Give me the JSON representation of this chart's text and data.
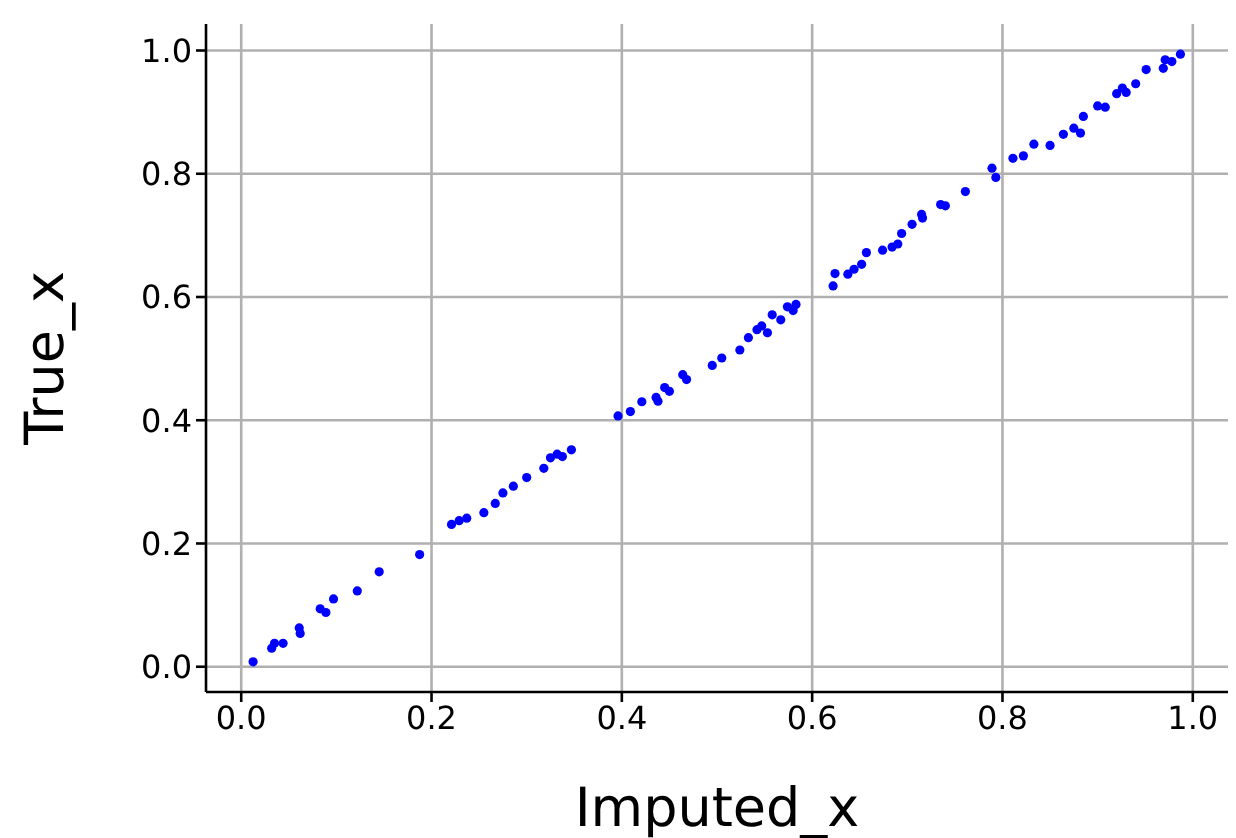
{
  "chart_data": {
    "type": "scatter",
    "xlabel": "Imputed_x",
    "ylabel": "True_x",
    "marker": "circle",
    "grid": true,
    "xlim": [
      -0.037,
      1.037
    ],
    "ylim": [
      -0.041,
      1.043
    ],
    "xticks": [
      {
        "value": 0,
        "label": "0.0"
      },
      {
        "value": 0.2,
        "label": "0.2"
      },
      {
        "value": 0.4,
        "label": "0.4"
      },
      {
        "value": 0.6,
        "label": "0.6"
      },
      {
        "value": 0.8,
        "label": "0.8"
      },
      {
        "value": 1,
        "label": "1.0"
      }
    ],
    "yticks": [
      {
        "value": 0,
        "label": "0.0"
      },
      {
        "value": 0.2,
        "label": "0.2"
      },
      {
        "value": 0.4,
        "label": "0.4"
      },
      {
        "value": 0.6,
        "label": "0.6"
      },
      {
        "value": 0.8,
        "label": "0.8"
      },
      {
        "value": 1,
        "label": "1.0"
      }
    ],
    "series": [
      {
        "color": "#0000ff",
        "x": [
          0.0125,
          0.032,
          0.035,
          0.044,
          0.061,
          0.062,
          0.083,
          0.089,
          0.097,
          0.122,
          0.145,
          0.1875,
          0.221,
          0.229,
          0.237,
          0.255,
          0.267,
          0.275,
          0.286,
          0.3,
          0.318,
          0.325,
          0.332,
          0.3375,
          0.347,
          0.396,
          0.409,
          0.421,
          0.436,
          0.438,
          0.445,
          0.45,
          0.464,
          0.468,
          0.495,
          0.505,
          0.524,
          0.533,
          0.542,
          0.547,
          0.553,
          0.558,
          0.567,
          0.574,
          0.58,
          0.583,
          0.622,
          0.624,
          0.6375,
          0.644,
          0.652,
          0.657,
          0.674,
          0.684,
          0.69,
          0.694,
          0.705,
          0.715,
          0.716,
          0.735,
          0.74,
          0.761,
          0.789,
          0.793,
          0.811,
          0.822,
          0.833,
          0.85,
          0.864,
          0.875,
          0.882,
          0.885,
          0.9,
          0.908,
          0.92,
          0.926,
          0.93,
          0.94,
          0.951,
          0.969,
          0.971,
          0.978,
          0.987
        ],
        "values": [
          0.008,
          0.03,
          0.038,
          0.038,
          0.063,
          0.054,
          0.094,
          0.088,
          0.11,
          0.123,
          0.154,
          0.182,
          0.231,
          0.237,
          0.241,
          0.25,
          0.265,
          0.282,
          0.293,
          0.307,
          0.322,
          0.339,
          0.345,
          0.341,
          0.352,
          0.407,
          0.414,
          0.43,
          0.437,
          0.431,
          0.453,
          0.447,
          0.474,
          0.466,
          0.489,
          0.501,
          0.514,
          0.534,
          0.547,
          0.553,
          0.542,
          0.571,
          0.563,
          0.584,
          0.578,
          0.588,
          0.618,
          0.638,
          0.637,
          0.645,
          0.653,
          0.672,
          0.676,
          0.681,
          0.686,
          0.703,
          0.718,
          0.734,
          0.728,
          0.75,
          0.748,
          0.771,
          0.809,
          0.794,
          0.825,
          0.829,
          0.848,
          0.846,
          0.864,
          0.874,
          0.866,
          0.893,
          0.91,
          0.908,
          0.93,
          0.939,
          0.932,
          0.946,
          0.969,
          0.971,
          0.985,
          0.982,
          0.994
        ]
      }
    ]
  }
}
